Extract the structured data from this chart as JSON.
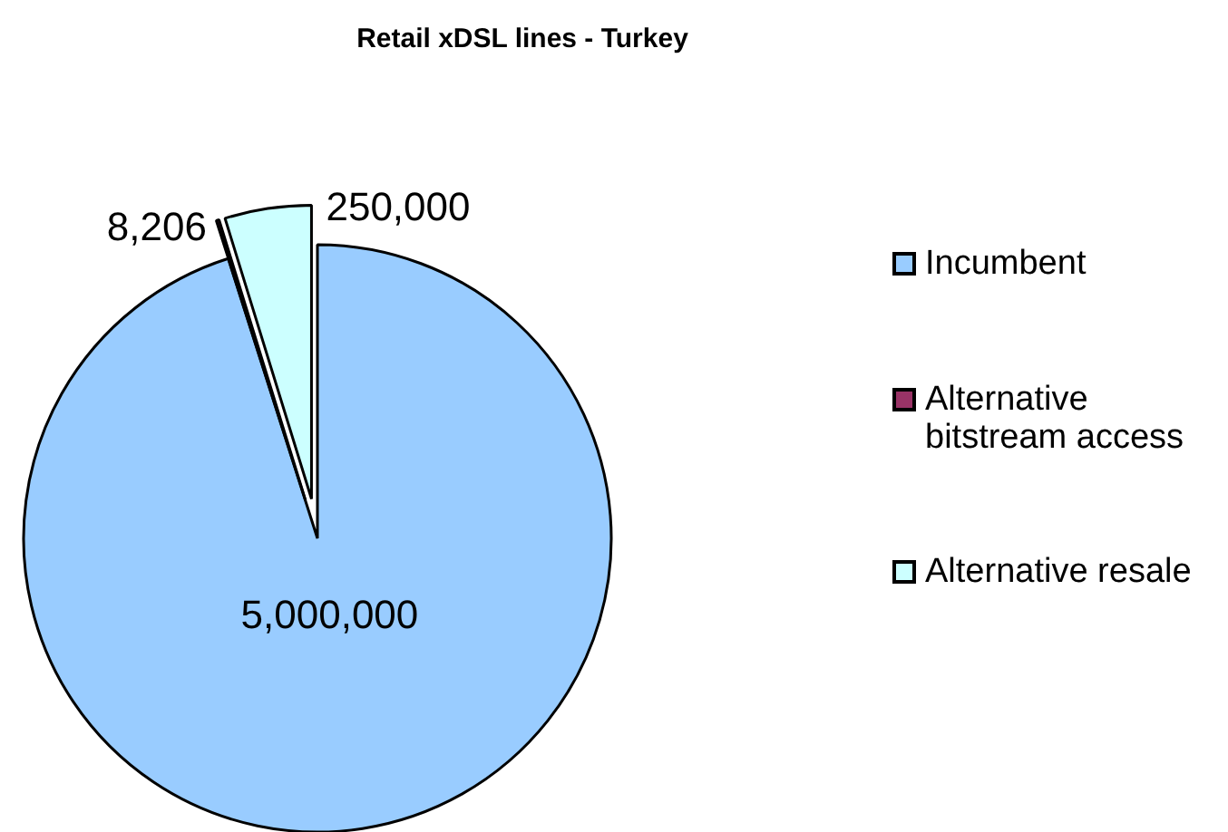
{
  "chart_data": {
    "type": "pie",
    "title": "Retail xDSL lines - Turkey",
    "categories": [
      "Incumbent",
      "Alternative bitstream access",
      "Alternative resale"
    ],
    "values": [
      5000000,
      8206,
      250000
    ],
    "value_labels": [
      "5,000,000",
      "8,206",
      "250,000"
    ],
    "colors": [
      "#99ccff",
      "#993366",
      "#ccffff"
    ],
    "legend": "right"
  }
}
